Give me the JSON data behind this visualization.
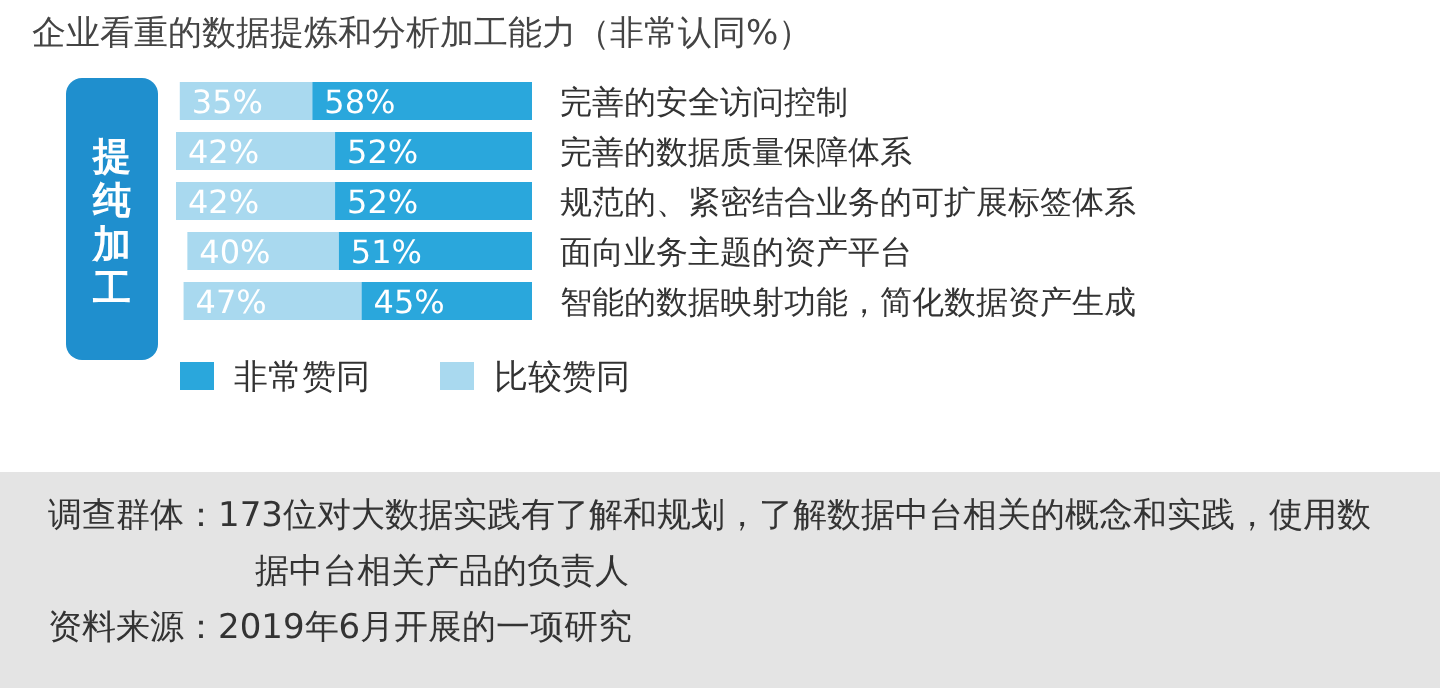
{
  "chart_data": {
    "type": "bar",
    "orientation": "horizontal",
    "stacked": true,
    "title": "企业看重的数据提炼和分析加工能力（非常认同%）",
    "ylabel": "提纯加工",
    "categories": [
      "完善的安全访问控制",
      "完善的数据质量保障体系",
      "规范的、紧密结合业务的可扩展标签体系",
      "面向业务主题的资产平台",
      "智能的数据映射功能，简化数据资产生成"
    ],
    "series": [
      {
        "name": "比较赞同",
        "color": "#a9d9ef",
        "values": [
          35,
          42,
          42,
          40,
          47
        ],
        "value_labels": [
          "35%",
          "42%",
          "42%",
          "40%",
          "47%"
        ]
      },
      {
        "name": "非常赞同",
        "color": "#2aa7dc",
        "values": [
          58,
          52,
          52,
          51,
          45
        ],
        "value_labels": [
          "58%",
          "52%",
          "52%",
          "51%",
          "45%"
        ]
      }
    ],
    "legend": "bottom",
    "annotations": [
      "调查群体：173位对大数据实践有了解和规划，了解数据中台相关的概念和实践，使用数据中台相关产品的负责人",
      "资料来源：2019年6月开展的一项研究"
    ]
  }
}
